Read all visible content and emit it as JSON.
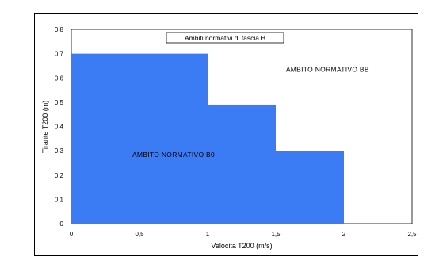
{
  "chart_data": {
    "type": "area",
    "title": "Ambiti normativi di fascia  B",
    "xlabel": "Velocita  T200  (m/s)",
    "ylabel": "Tirante  T200  (m)",
    "xlim": [
      0,
      2.5
    ],
    "ylim": [
      0,
      0.8
    ],
    "x_ticks": [
      "0",
      "0,5",
      "1",
      "1,5",
      "2",
      "2,5"
    ],
    "x_tick_values": [
      0,
      0.5,
      1,
      1.5,
      2,
      2.5
    ],
    "y_ticks": [
      "0",
      "0,1",
      "0,2",
      "0,3",
      "0,4",
      "0,5",
      "0,6",
      "0,7",
      "0,8"
    ],
    "y_tick_values": [
      0,
      0.1,
      0.2,
      0.3,
      0.4,
      0.5,
      0.6,
      0.7,
      0.8
    ],
    "grid": false,
    "series": [
      {
        "name": "AMBITO  NORMATIVO  B0",
        "color": "#3b7cf5",
        "steps": [
          {
            "x_from": 0,
            "x_to": 1,
            "y": 0.7
          },
          {
            "x_from": 1,
            "x_to": 1.5,
            "y": 0.49
          },
          {
            "x_from": 1.5,
            "x_to": 2,
            "y": 0.3
          }
        ]
      }
    ],
    "annotations": [
      {
        "text": "AMBITO  NORMATIVO  B0",
        "x": 0.75,
        "y": 0.275
      },
      {
        "text": "AMBITO  NORMATIVO  BB",
        "x": 1.88,
        "y": 0.625
      }
    ]
  }
}
